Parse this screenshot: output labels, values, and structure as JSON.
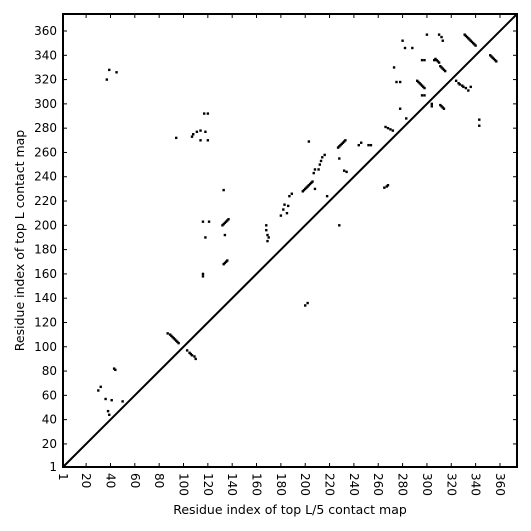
{
  "chart_data": {
    "type": "scatter",
    "title": "",
    "xlabel": "Residue index of top L/5 contact map",
    "ylabel": "Residue index of top L contact map",
    "xlim": [
      1,
      374
    ],
    "ylim": [
      1,
      374
    ],
    "grid": false,
    "diagonal_line": true,
    "marker_color": "#000000",
    "x_ticks": [
      1,
      20,
      40,
      60,
      80,
      100,
      120,
      140,
      160,
      180,
      200,
      220,
      240,
      260,
      280,
      300,
      320,
      340,
      360
    ],
    "y_ticks": [
      1,
      20,
      40,
      60,
      80,
      100,
      120,
      140,
      160,
      180,
      200,
      220,
      240,
      260,
      280,
      300,
      320,
      340,
      360
    ],
    "series": [
      {
        "values_xy": [
          [
            30,
            64
          ],
          [
            32,
            67
          ],
          [
            36,
            57
          ],
          [
            38,
            47
          ],
          [
            39,
            44
          ],
          [
            41,
            56
          ],
          [
            43,
            82
          ],
          [
            44,
            81
          ],
          [
            50,
            55
          ],
          [
            37,
            320
          ],
          [
            39,
            328
          ],
          [
            45,
            326
          ],
          [
            87,
            111
          ],
          [
            89,
            110
          ],
          [
            90,
            109
          ],
          [
            91,
            108
          ],
          [
            92,
            107
          ],
          [
            93,
            106
          ],
          [
            94,
            105
          ],
          [
            95,
            104
          ],
          [
            96,
            103
          ],
          [
            103,
            97
          ],
          [
            105,
            95
          ],
          [
            106,
            94
          ],
          [
            107,
            93
          ],
          [
            109,
            92
          ],
          [
            110,
            90
          ],
          [
            94,
            272
          ],
          [
            107,
            273
          ],
          [
            108,
            275
          ],
          [
            111,
            277
          ],
          [
            114,
            278
          ],
          [
            118,
            277
          ],
          [
            117,
            292
          ],
          [
            120,
            292
          ],
          [
            114,
            270
          ],
          [
            120,
            270
          ],
          [
            116,
            203
          ],
          [
            121,
            203
          ],
          [
            116,
            160
          ],
          [
            116,
            158
          ],
          [
            118,
            190
          ],
          [
            132,
            200
          ],
          [
            133,
            201
          ],
          [
            134,
            202
          ],
          [
            135,
            203
          ],
          [
            136,
            204
          ],
          [
            137,
            205
          ],
          [
            133,
            229
          ],
          [
            133,
            168
          ],
          [
            134,
            169
          ],
          [
            135,
            170
          ],
          [
            136,
            171
          ],
          [
            134,
            192
          ],
          [
            168,
            200
          ],
          [
            168,
            196
          ],
          [
            169,
            192
          ],
          [
            170,
            190
          ],
          [
            169,
            187
          ],
          [
            180,
            208
          ],
          [
            182,
            213
          ],
          [
            183,
            217
          ],
          [
            185,
            210
          ],
          [
            186,
            216
          ],
          [
            187,
            224
          ],
          [
            189,
            226
          ],
          [
            198,
            228
          ],
          [
            199,
            229
          ],
          [
            200,
            230
          ],
          [
            201,
            231
          ],
          [
            202,
            232
          ],
          [
            203,
            233
          ],
          [
            204,
            234
          ],
          [
            205,
            235
          ],
          [
            206,
            236
          ],
          [
            203,
            269
          ],
          [
            207,
            243
          ],
          [
            208,
            246
          ],
          [
            211,
            246
          ],
          [
            212,
            250
          ],
          [
            213,
            253
          ],
          [
            214,
            256
          ],
          [
            216,
            258
          ],
          [
            218,
            224
          ],
          [
            208,
            230
          ],
          [
            200,
            134
          ],
          [
            202,
            136
          ],
          [
            227,
            264
          ],
          [
            228,
            265
          ],
          [
            229,
            266
          ],
          [
            230,
            267
          ],
          [
            231,
            268
          ],
          [
            232,
            269
          ],
          [
            233,
            270
          ],
          [
            228,
            255
          ],
          [
            232,
            245
          ],
          [
            234,
            244
          ],
          [
            228,
            200
          ],
          [
            244,
            266
          ],
          [
            246,
            268
          ],
          [
            252,
            266
          ],
          [
            254,
            266
          ],
          [
            265,
            231
          ],
          [
            267,
            232
          ],
          [
            268,
            233
          ],
          [
            266,
            281
          ],
          [
            268,
            280
          ],
          [
            270,
            279
          ],
          [
            272,
            278
          ],
          [
            273,
            330
          ],
          [
            275,
            318
          ],
          [
            278,
            318
          ],
          [
            278,
            296
          ],
          [
            280,
            352
          ],
          [
            282,
            346
          ],
          [
            283,
            288
          ],
          [
            288,
            346
          ],
          [
            292,
            319
          ],
          [
            293,
            318
          ],
          [
            294,
            317
          ],
          [
            295,
            316
          ],
          [
            296,
            315
          ],
          [
            297,
            314
          ],
          [
            298,
            313
          ],
          [
            296,
            307
          ],
          [
            298,
            307
          ],
          [
            296,
            336
          ],
          [
            298,
            336
          ],
          [
            300,
            357
          ],
          [
            304,
            300
          ],
          [
            304,
            298
          ],
          [
            306,
            336
          ],
          [
            307,
            337
          ],
          [
            308,
            336
          ],
          [
            309,
            335
          ],
          [
            310,
            334
          ],
          [
            310,
            357
          ],
          [
            312,
            355
          ],
          [
            313,
            352
          ],
          [
            311,
            331
          ],
          [
            312,
            330
          ],
          [
            313,
            329
          ],
          [
            314,
            328
          ],
          [
            315,
            327
          ],
          [
            311,
            299
          ],
          [
            312,
            298
          ],
          [
            313,
            297
          ],
          [
            314,
            296
          ],
          [
            324,
            319
          ],
          [
            326,
            317
          ],
          [
            327,
            316
          ],
          [
            329,
            315
          ],
          [
            330,
            314
          ],
          [
            332,
            313
          ],
          [
            334,
            311
          ],
          [
            336,
            314
          ],
          [
            331,
            357
          ],
          [
            332,
            356
          ],
          [
            333,
            355
          ],
          [
            334,
            354
          ],
          [
            335,
            353
          ],
          [
            336,
            352
          ],
          [
            337,
            351
          ],
          [
            338,
            350
          ],
          [
            339,
            349
          ],
          [
            340,
            348
          ],
          [
            343,
            282
          ],
          [
            343,
            287
          ],
          [
            352,
            340
          ],
          [
            353,
            339
          ],
          [
            354,
            338
          ],
          [
            355,
            337
          ],
          [
            356,
            336
          ],
          [
            357,
            335
          ]
        ]
      }
    ]
  }
}
